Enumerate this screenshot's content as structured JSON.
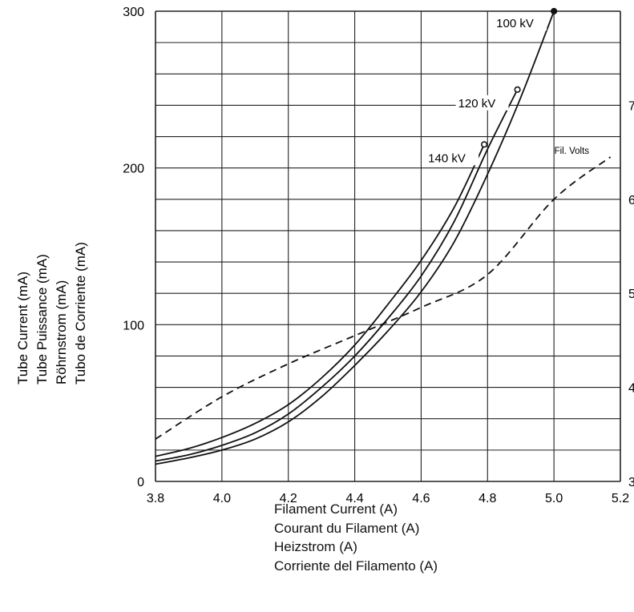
{
  "chart_data": {
    "type": "line",
    "xlabel_lines": [
      "Filament Current (A)",
      "Courant du Filament (A)",
      "Heizstrom (A)",
      "Corriente del Filamento (A)"
    ],
    "ylabel_lines": [
      "Tube Current (mA)",
      "Tube Puissance (mA)",
      "Röhrnstrom (mA)",
      "Tubo de Corriente (mA)"
    ],
    "xlim": [
      3.8,
      5.2
    ],
    "ylim": [
      0,
      300
    ],
    "x_ticks": [
      "3.8",
      "4.0",
      "4.2",
      "4.4",
      "4.6",
      "4.8",
      "5.0",
      "5.2"
    ],
    "y_ticks": [
      "0",
      "100",
      "200",
      "300"
    ],
    "right_ticks": [
      "3",
      "4",
      "5",
      "6",
      "7"
    ],
    "right_ylim": [
      3,
      8
    ],
    "grid": true,
    "series": [
      {
        "name": "100 kV",
        "end_marker": "filled",
        "points": [
          [
            3.8,
            11
          ],
          [
            3.9,
            15
          ],
          [
            4.0,
            20
          ],
          [
            4.1,
            27
          ],
          [
            4.2,
            38
          ],
          [
            4.3,
            54
          ],
          [
            4.4,
            74
          ],
          [
            4.5,
            96
          ],
          [
            4.6,
            121
          ],
          [
            4.7,
            153
          ],
          [
            4.8,
            196
          ],
          [
            4.9,
            245
          ],
          [
            5.0,
            300
          ]
        ]
      },
      {
        "name": "120 kV",
        "end_marker": "open",
        "points": [
          [
            3.8,
            13
          ],
          [
            3.9,
            17
          ],
          [
            4.0,
            23
          ],
          [
            4.1,
            31
          ],
          [
            4.2,
            43
          ],
          [
            4.3,
            60
          ],
          [
            4.4,
            80
          ],
          [
            4.5,
            104
          ],
          [
            4.6,
            131
          ],
          [
            4.7,
            166
          ],
          [
            4.8,
            212
          ],
          [
            4.89,
            250
          ]
        ]
      },
      {
        "name": "140 kV",
        "end_marker": "open",
        "points": [
          [
            3.8,
            16
          ],
          [
            3.9,
            21
          ],
          [
            4.0,
            28
          ],
          [
            4.1,
            37
          ],
          [
            4.2,
            49
          ],
          [
            4.3,
            66
          ],
          [
            4.4,
            87
          ],
          [
            4.5,
            113
          ],
          [
            4.6,
            141
          ],
          [
            4.7,
            175
          ],
          [
            4.79,
            215
          ]
        ]
      },
      {
        "name": "Fil. Volts",
        "style": "dashed",
        "axis": "right",
        "points": [
          [
            3.8,
            3.45
          ],
          [
            4.0,
            3.9
          ],
          [
            4.2,
            4.25
          ],
          [
            4.4,
            4.55
          ],
          [
            4.6,
            4.85
          ],
          [
            4.8,
            5.2
          ],
          [
            5.0,
            6.0
          ],
          [
            5.17,
            6.45
          ]
        ]
      }
    ]
  }
}
